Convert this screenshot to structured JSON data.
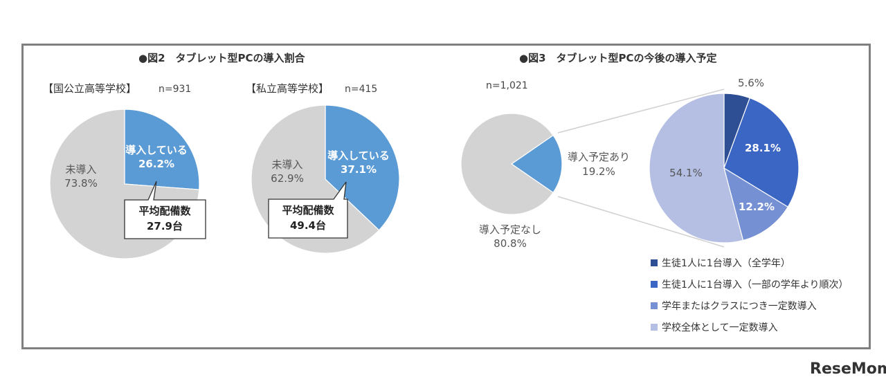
{
  "colors": {
    "gray": "#d3d3d3",
    "blue": "#5b9bd5",
    "navy": "#2e4f94",
    "royal": "#3c66c4",
    "mid": "#7690d4",
    "light": "#b4bfe3"
  },
  "fig2": {
    "title": "●図2　タブレット型PCの導入割合",
    "public": {
      "heading": "【国公立高等学校】",
      "n": "n=931",
      "callout_title": "平均配備数",
      "callout_value": "27.9台"
    },
    "private": {
      "heading": "【私立高等学校】",
      "n": "n=415",
      "callout_title": "平均配備数",
      "callout_value": "49.4台"
    }
  },
  "fig3": {
    "title": "●図3　タブレット型PCの今後の導入予定",
    "n": "n=1,021"
  },
  "logo": {
    "text": "ReseMom"
  },
  "chart_data": [
    {
      "type": "pie",
      "title": "【国公立高等学校】",
      "categories": [
        "導入している",
        "未導入"
      ],
      "values": [
        26.2,
        73.8
      ],
      "labels": [
        "26.2%",
        "73.8%"
      ]
    },
    {
      "type": "pie",
      "title": "【私立高等学校】",
      "categories": [
        "導入している",
        "未導入"
      ],
      "values": [
        37.1,
        62.9
      ],
      "labels": [
        "37.1%",
        "62.9%"
      ]
    },
    {
      "type": "pie",
      "title": "●図3　タブレット型PCの今後の導入予定",
      "categories": [
        "導入予定あり",
        "導入予定なし"
      ],
      "values": [
        19.2,
        80.8
      ],
      "labels": [
        "19.2%",
        "80.8%"
      ]
    },
    {
      "type": "pie",
      "categories": [
        "生徒1人に1台導入（全学年）",
        "生徒1人に1台導入（一部の学年より順次）",
        "学年またはクラスにつき一定数導入",
        "学校全体として一定数導入"
      ],
      "values": [
        5.6,
        28.1,
        12.2,
        54.1
      ],
      "labels": [
        "5.6%",
        "28.1%",
        "12.2%",
        "54.1%"
      ],
      "legend": "bottom-right"
    }
  ]
}
